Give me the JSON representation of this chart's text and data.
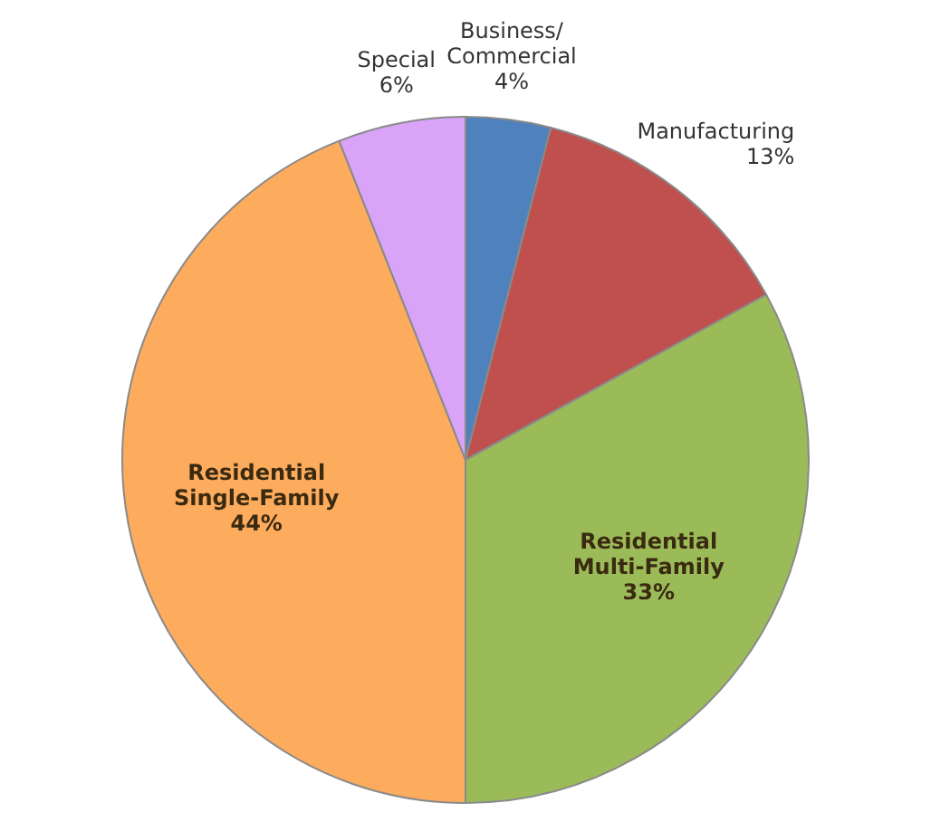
{
  "chart_data": {
    "type": "pie",
    "categories": [
      "Business/Commercial",
      "Manufacturing",
      "Residential Multi-Family",
      "Residential Single-Family",
      "Special"
    ],
    "values": [
      4,
      13,
      33,
      44,
      6
    ],
    "colors": [
      "#4f81bd",
      "#c0504d",
      "#9bbb59",
      "#fdab5d",
      "#d9a3f7"
    ],
    "value_labels": [
      "4%",
      "13%",
      "33%",
      "44%",
      "6%"
    ],
    "legend": false
  }
}
